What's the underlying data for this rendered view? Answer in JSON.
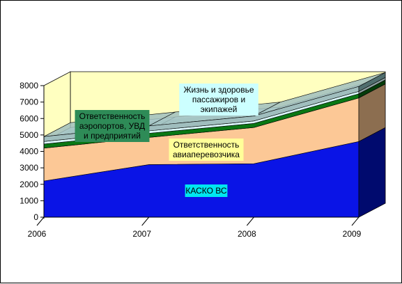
{
  "chart_data": {
    "type": "area",
    "stacked": true,
    "style": "3d",
    "x": [
      "2006",
      "2007",
      "2008",
      "2009"
    ],
    "ylim": [
      0,
      8000
    ],
    "yticks": [
      "0",
      "1000",
      "2000",
      "3000",
      "4000",
      "5000",
      "6000",
      "7000",
      "8000"
    ],
    "grid": false,
    "legend": "none",
    "series": [
      {
        "name": "КАСКО ВС",
        "values": [
          2200,
          3200,
          3250,
          4600
        ],
        "color": "#0a14e6",
        "color_dark": "#000a6e"
      },
      {
        "name": "Ответственность авиаперевозчика",
        "values": [
          2000,
          1650,
          2200,
          2650
        ],
        "color": "#fcc896",
        "color_dark": "#8c6e50"
      },
      {
        "name": "Ответственность аэропортов, УВД и предприятий",
        "values": [
          250,
          250,
          250,
          250
        ],
        "color": "#0a7814",
        "color_dark": "#053c0a"
      },
      {
        "name": "Жизнь и здоровье пассажиров и экипажей",
        "values": [
          150,
          150,
          150,
          150
        ],
        "color": "#dcfaff",
        "color_dark": "#8ca0a0"
      },
      {
        "name": "",
        "values": [
          300,
          300,
          300,
          300
        ],
        "color": "#a0bebe",
        "color_dark": "#506e6e"
      }
    ],
    "annotations": [
      {
        "series": 0,
        "text": "КАСКО ВС",
        "bg": "#00e6f0"
      },
      {
        "series": 1,
        "text": "Ответственность авиаперевозчика",
        "bg": "#ffff99"
      },
      {
        "series": 2,
        "text": "Ответственность аэропортов, УВД и предприятий",
        "bg": "#2e8b57"
      },
      {
        "series": 3,
        "text": "Жизнь и здоровье пассажиров и экипажей",
        "bg": "#ccffff"
      }
    ],
    "colors": {
      "back_wall": "#ffffc0",
      "floor": "#909090",
      "frame": "#000000"
    }
  }
}
